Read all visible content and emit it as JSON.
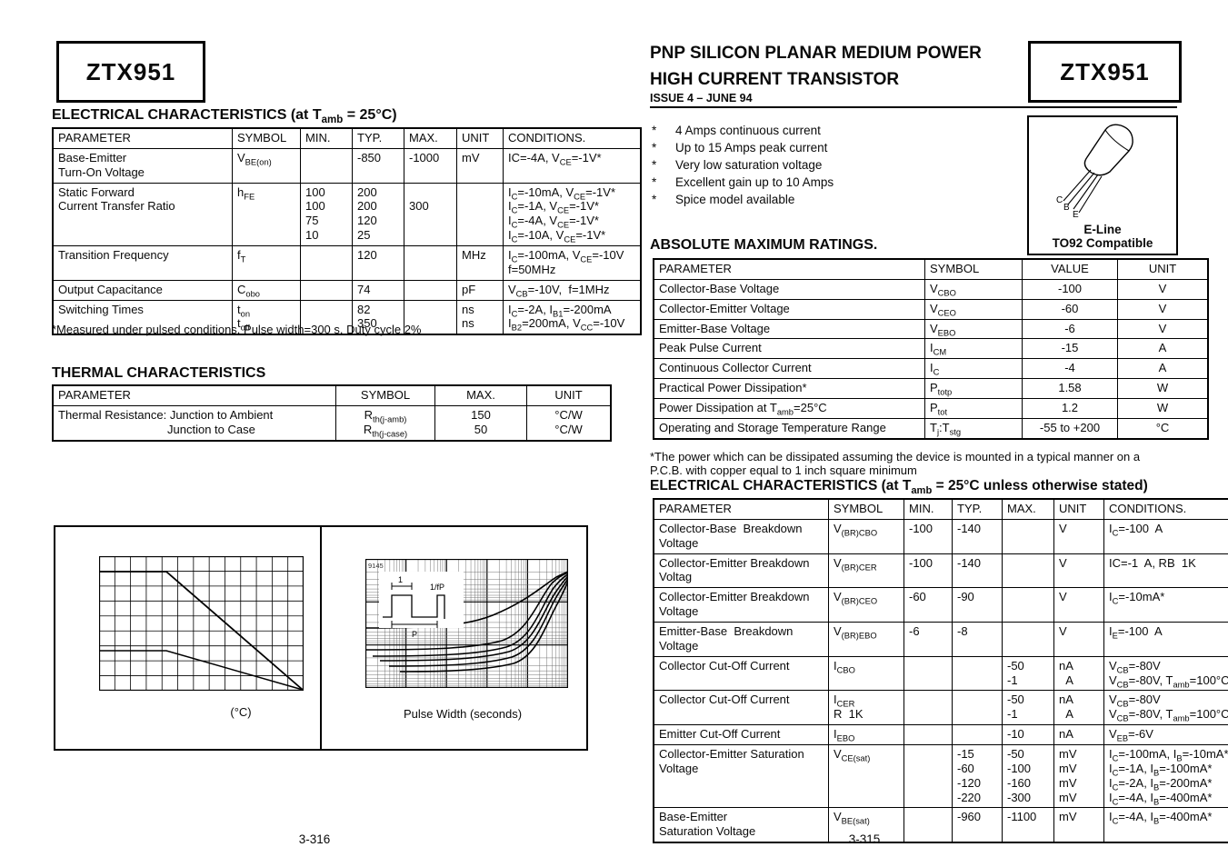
{
  "page": {
    "left_page_number": "3-316",
    "right_page_number": "3-315"
  },
  "left_col": {
    "part_number": "ZTX951",
    "ec": {
      "title": "ELECTRICAL CHARACTERISTICS (at T~amb~ = 25°C)",
      "headers": [
        "PARAMETER",
        "SYMBOL",
        "MIN.",
        "TYP.",
        "MAX.",
        "UNIT",
        "CONDITIONS."
      ],
      "rows": [
        [
          [
            "Base-Emitter",
            "Turn-On Voltage"
          ],
          [
            "V~BE(on)~"
          ],
          [],
          [
            "-850"
          ],
          [
            "-1000"
          ],
          [
            "mV"
          ],
          [
            "IC=-4A, V~CE~=-1V*"
          ]
        ],
        [
          [
            "Static Forward",
            "Current Transfer Ratio"
          ],
          [
            "h~FE~"
          ],
          [
            "100",
            "100",
            "75",
            "10"
          ],
          [
            "200",
            "200",
            "120",
            "25"
          ],
          [
            "",
            "300"
          ],
          [],
          [
            "I~C~=-10mA, V~CE~=-1V*",
            "I~C~=-1A, V~CE~=-1V*",
            "I~C~=-4A, V~CE~=-1V*",
            "I~C~=-10A, V~CE~=-1V*"
          ]
        ],
        [
          [
            "Transition Frequency"
          ],
          [
            "f~T~"
          ],
          [],
          [
            "120"
          ],
          [],
          [
            "MHz"
          ],
          [
            "I~C~=-100mA, V~CE~=-10V",
            "f=50MHz"
          ]
        ],
        [
          [
            "Output Capacitance"
          ],
          [
            "C~obo~"
          ],
          [],
          [
            "74"
          ],
          [],
          [
            "pF"
          ],
          [
            "V~CB~=-10V,  f=1MHz"
          ]
        ],
        [
          [
            "Switching Times"
          ],
          [
            "t~on~",
            "t~off~"
          ],
          [],
          [
            "82",
            "350"
          ],
          [],
          [
            "ns",
            "ns"
          ],
          [
            "I~C~=-2A, I~B1~=-200mA",
            "I~B2~=200mA, V~CC~=-10V"
          ]
        ]
      ]
    },
    "ec_footnote": "*Measured under pulsed conditions. Pulse width=300  s. Duty cycle   2%",
    "thermal": {
      "title": "THERMAL CHARACTERISTICS",
      "headers": [
        "PARAMETER",
        "SYMBOL",
        "MAX.",
        "UNIT"
      ],
      "rows": [
        [
          [
            "Thermal Resistance: Junction to Ambient",
            "\tJunction to Case"
          ],
          [
            "R~th(j-amb)~",
            "R~th(j-case)~"
          ],
          [
            "150",
            "50"
          ],
          [
            "°C/W",
            "°C/W"
          ]
        ]
      ]
    },
    "charts": {
      "derating_caption": "(°C)",
      "pulse_caption": "Pulse Width (seconds)",
      "corner_label": "9145",
      "inset_top_label": "1",
      "inset_right_label": "1/fP",
      "inset_bottom_label": "P"
    }
  },
  "right_col": {
    "title_line1": "PNP SILICON PLANAR MEDIUM POWER",
    "title_line2": "HIGH CURRENT TRANSISTOR",
    "issue": "ISSUE 4 – JUNE 94",
    "part_number": "ZTX951",
    "bullet_char": "*",
    "features": [
      "4 Amps continuous current",
      "Up to 15 Amps peak current",
      "Very low saturation voltage",
      "Excellent gain up to 10 Amps",
      "Spice model available"
    ],
    "package": {
      "pin1": "C",
      "pin2": "B",
      "pin3": "E",
      "line1": "E-Line",
      "line2": "TO92 Compatible"
    },
    "amr": {
      "title": "ABSOLUTE MAXIMUM RATINGS.",
      "headers": [
        "PARAMETER",
        "SYMBOL",
        "VALUE",
        "UNIT"
      ],
      "rows": [
        [
          [
            "Collector-Base Voltage"
          ],
          [
            "V~CBO~"
          ],
          [
            "-100"
          ],
          [
            "V"
          ]
        ],
        [
          [
            "Collector-Emitter Voltage"
          ],
          [
            "V~CEO~"
          ],
          [
            "-60"
          ],
          [
            "V"
          ]
        ],
        [
          [
            "Emitter-Base Voltage"
          ],
          [
            "V~EBO~"
          ],
          [
            "-6"
          ],
          [
            "V"
          ]
        ],
        [
          [
            "Peak Pulse Current"
          ],
          [
            "I~CM~"
          ],
          [
            "-15"
          ],
          [
            "A"
          ]
        ],
        [
          [
            "Continuous Collector Current"
          ],
          [
            "I~C~"
          ],
          [
            "-4"
          ],
          [
            "A"
          ]
        ],
        [
          [
            "Practical Power Dissipation*"
          ],
          [
            "P~totp~"
          ],
          [
            "1.58"
          ],
          [
            "W"
          ]
        ],
        [
          [
            "Power Dissipation at T~amb~=25°C"
          ],
          [
            "P~tot~"
          ],
          [
            "1.2"
          ],
          [
            "W"
          ]
        ],
        [
          [
            "Operating and Storage Temperature Range"
          ],
          [
            "T~j~:T~stg~"
          ],
          [
            "-55 to +200"
          ],
          [
            "°C"
          ]
        ]
      ]
    },
    "amr_footnote": [
      "*The power which can be dissipated assuming the device is mounted in a typical manner on a",
      "P.C.B. with copper equal to 1 inch square minimum"
    ],
    "ec": {
      "title": "ELECTRICAL CHARACTERISTICS (at T~amb~ = 25°C unless otherwise stated)",
      "headers": [
        "PARAMETER",
        "SYMBOL",
        "MIN.",
        "TYP.",
        "MAX.",
        "UNIT",
        "CONDITIONS."
      ],
      "rows": [
        [
          [
            "Collector-Base  Breakdown",
            "Voltage"
          ],
          [
            "V~(BR)CBO~"
          ],
          [
            "-100"
          ],
          [
            "-140"
          ],
          [],
          [
            "V"
          ],
          [
            "I~C~=-100  A"
          ]
        ],
        [
          [
            "Collector-Emitter Breakdown",
            "Voltag"
          ],
          [
            "V~(BR)CER~"
          ],
          [
            "-100"
          ],
          [
            "-140"
          ],
          [],
          [
            "V"
          ],
          [
            "IC=-1  A, RB  1K"
          ]
        ],
        [
          [
            "Collector-Emitter Breakdown",
            "Voltage"
          ],
          [
            "V~(BR)CEO~"
          ],
          [
            "-60"
          ],
          [
            "-90"
          ],
          [],
          [
            "V"
          ],
          [
            "I~C~=-10mA*"
          ]
        ],
        [
          [
            "Emitter-Base  Breakdown",
            "Voltage"
          ],
          [
            "V~(BR)EBO~"
          ],
          [
            "-6"
          ],
          [
            "-8"
          ],
          [],
          [
            "V"
          ],
          [
            "I~E~=-100  A"
          ]
        ],
        [
          [
            "Collector Cut-Off Current"
          ],
          [
            "I~CBO~"
          ],
          [],
          [],
          [
            "-50",
            "-1"
          ],
          [
            "nA",
            "  A"
          ],
          [
            "V~CB~=-80V",
            "V~CB~=-80V, T~amb~=100°C"
          ]
        ],
        [
          [
            "Collector Cut-Off Current"
          ],
          [
            "I~CER~",
            "R  1K"
          ],
          [],
          [],
          [
            "-50",
            "-1"
          ],
          [
            "nA",
            "  A"
          ],
          [
            "V~CB~=-80V",
            "V~CB~=-80V, T~amb~=100°C"
          ]
        ],
        [
          [
            "Emitter Cut-Off Current"
          ],
          [
            "I~EBO~"
          ],
          [],
          [],
          [
            "-10"
          ],
          [
            "nA"
          ],
          [
            "V~EB~=-6V"
          ]
        ],
        [
          [
            "Collector-Emitter Saturation",
            "Voltage"
          ],
          [
            "V~CE(sat)~"
          ],
          [],
          [
            "-15",
            "-60",
            "-120",
            "-220"
          ],
          [
            "-50",
            "-100",
            "-160",
            "-300"
          ],
          [
            "mV",
            "mV",
            "mV",
            "mV"
          ],
          [
            "I~C~=-100mA, I~B~=-10mA*",
            "I~C~=-1A, I~B~=-100mA*",
            "I~C~=-2A, I~B~=-200mA*",
            "I~C~=-4A, I~B~=-400mA*"
          ]
        ],
        [
          [
            "Base-Emitter",
            "Saturation Voltage"
          ],
          [
            "V~BE(sat)~"
          ],
          [],
          [
            "-960"
          ],
          [
            "-1100"
          ],
          [
            "mV"
          ],
          [
            "I~C~=-4A, I~B~=-400mA*"
          ]
        ]
      ]
    }
  }
}
